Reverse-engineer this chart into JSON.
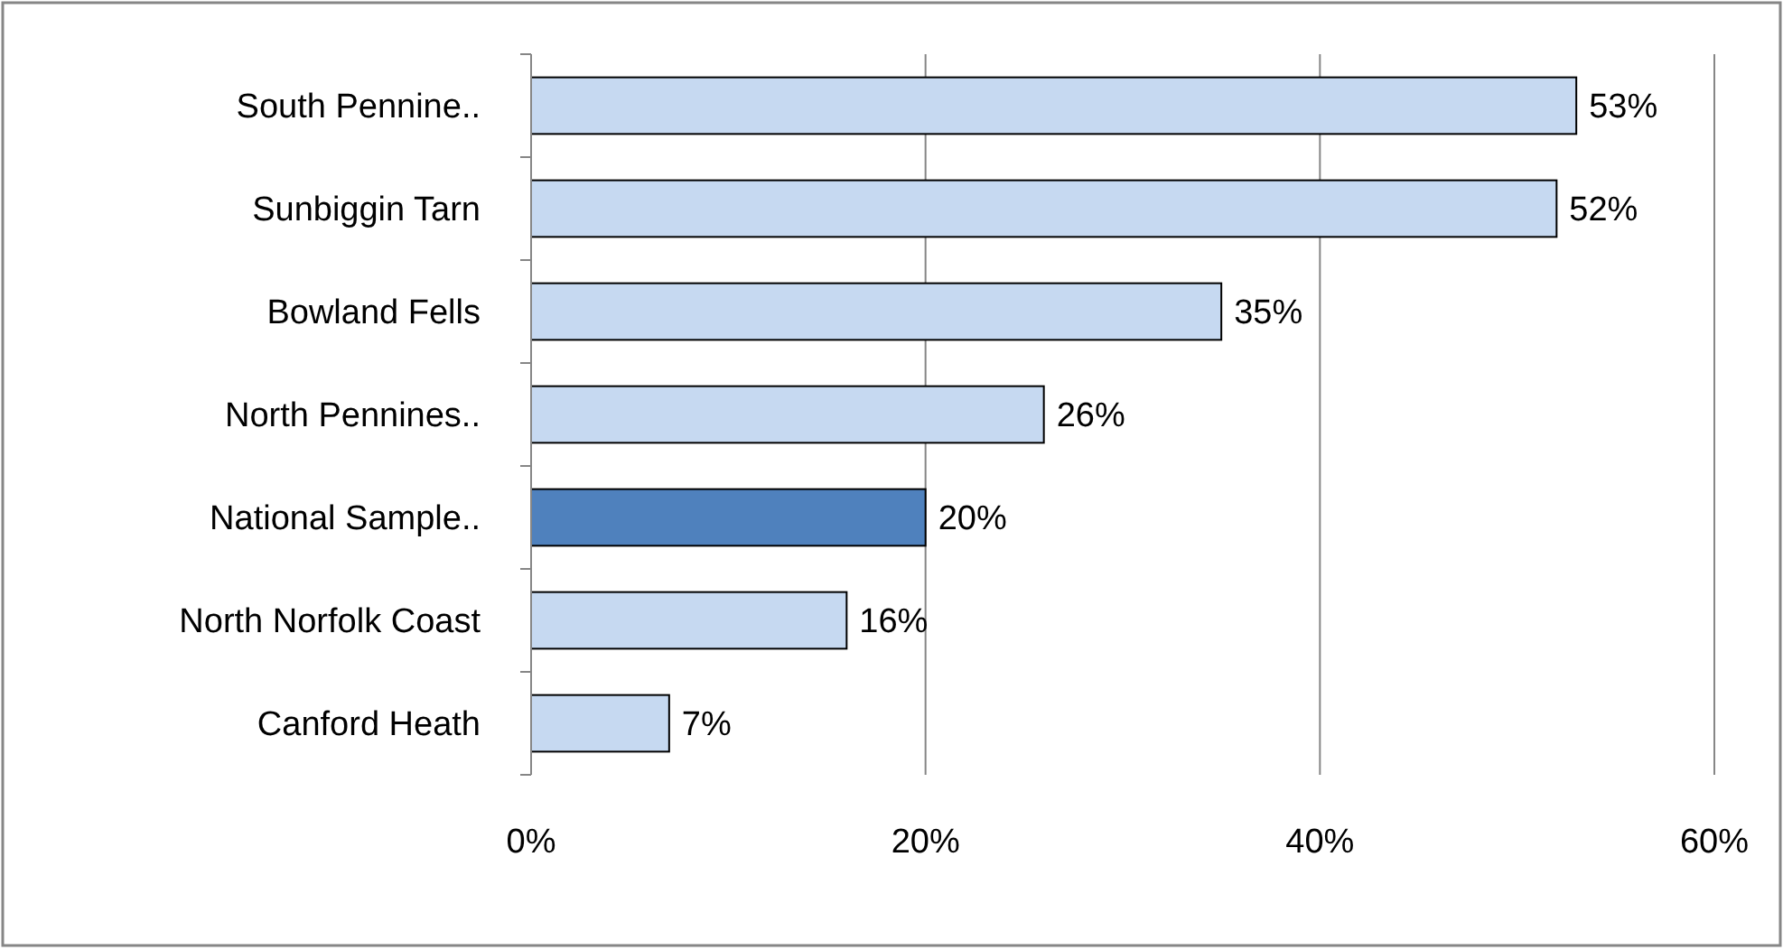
{
  "chart_data": {
    "type": "bar",
    "orientation": "horizontal",
    "categories": [
      "South Pennine..",
      "Sunbiggin Tarn",
      "Bowland Fells",
      "North Pennines..",
      "National Sample..",
      "North Norfolk Coast",
      "Canford Heath"
    ],
    "values": [
      53,
      52,
      35,
      26,
      20,
      16,
      7
    ],
    "colors": [
      "#c6d9f1",
      "#c6d9f1",
      "#c6d9f1",
      "#c6d9f1",
      "#4f81bd",
      "#c6d9f1",
      "#c6d9f1"
    ],
    "value_labels": [
      "53%",
      "52%",
      "35%",
      "26%",
      "20%",
      "16%",
      "7%"
    ],
    "xlim": [
      0,
      60
    ],
    "xticks": [
      {
        "value": 0,
        "label": "0%"
      },
      {
        "value": 20,
        "label": "20%"
      },
      {
        "value": 40,
        "label": "40%"
      },
      {
        "value": 60,
        "label": "60%"
      }
    ],
    "grid": "x"
  }
}
